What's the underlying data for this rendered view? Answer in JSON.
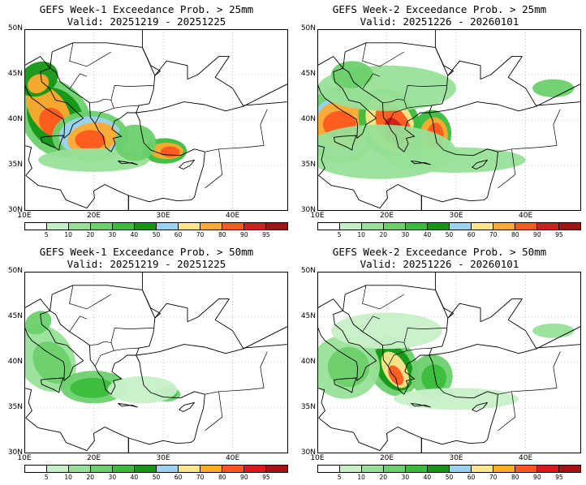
{
  "panels": [
    {
      "line1": "GEFS Week-1 Exceedance Prob. > 25mm",
      "line2": "Valid: 20251219 - 20251225",
      "week": 1,
      "threshold_mm": 25
    },
    {
      "line1": "GEFS Week-2 Exceedance Prob. > 25mm",
      "line2": "Valid: 20251226 - 20260101",
      "week": 2,
      "threshold_mm": 25
    },
    {
      "line1": "GEFS Week-1 Exceedance Prob. > 50mm",
      "line2": "Valid: 20251219 - 20251225",
      "week": 1,
      "threshold_mm": 50
    },
    {
      "line1": "GEFS Week-2 Exceedance Prob. > 50mm",
      "line2": "Valid: 20251226 - 20260101",
      "week": 2,
      "threshold_mm": 50
    }
  ],
  "lat_labels": [
    "50N",
    "45N",
    "40N",
    "35N",
    "30N"
  ],
  "lon_labels": [
    "10E",
    "20E",
    "30E",
    "40E"
  ],
  "colorbar": {
    "ticks": [
      "5",
      "10",
      "20",
      "30",
      "40",
      "50",
      "60",
      "70",
      "80",
      "90",
      "95"
    ],
    "colors": [
      "#ffffff",
      "#c8f0c8",
      "#98e098",
      "#6cd06c",
      "#3cbc3c",
      "#149614",
      "#9cd2f0",
      "#ffe68c",
      "#ffaa32",
      "#ff5a1e",
      "#d21e1e",
      "#a01414"
    ]
  }
}
